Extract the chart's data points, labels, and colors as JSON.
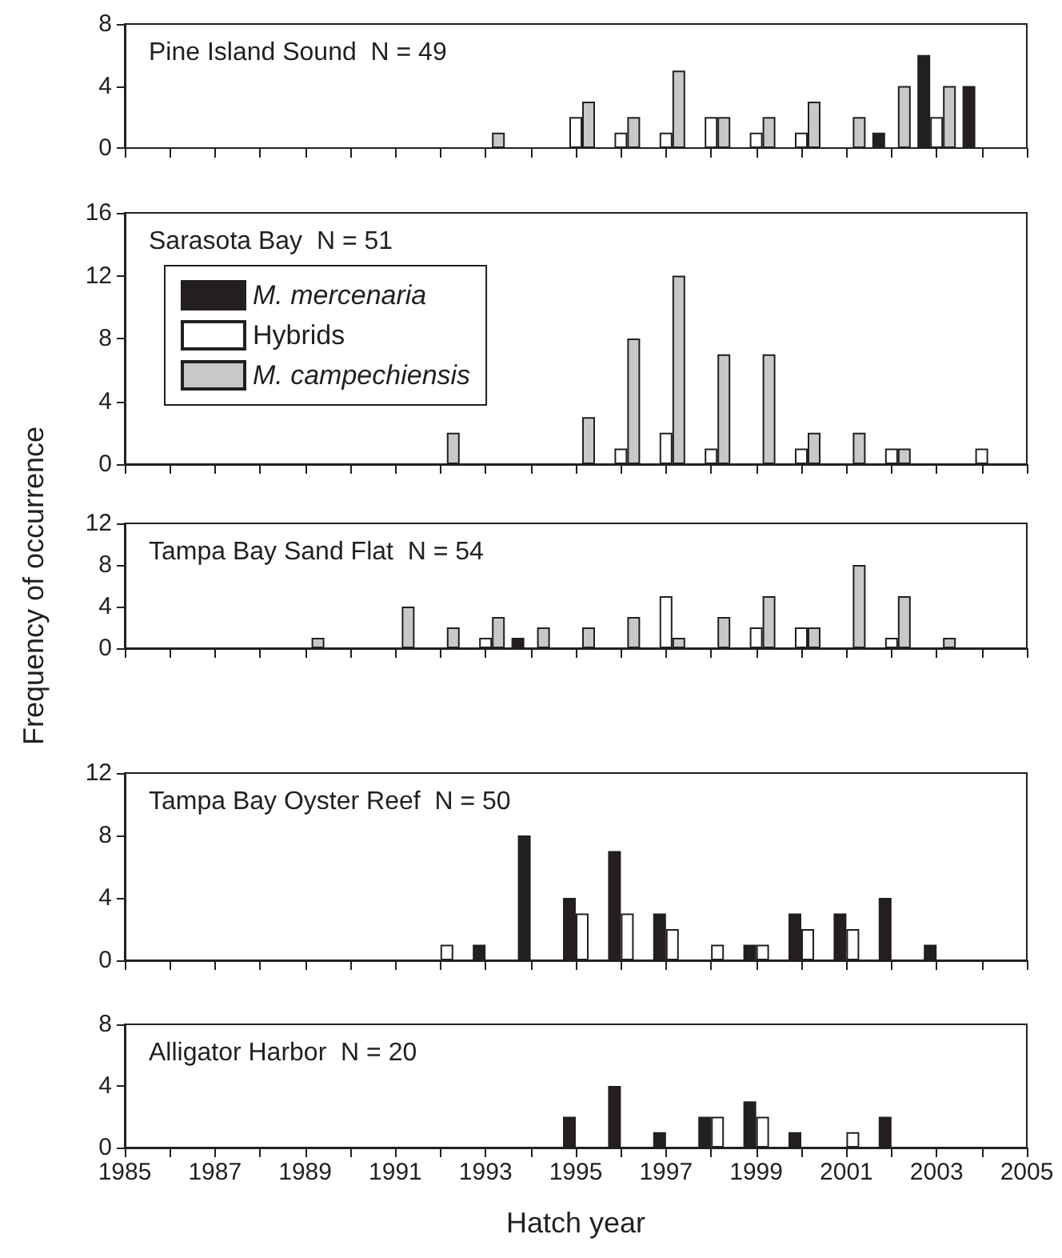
{
  "chart_data": [
    {
      "type": "bar",
      "title": "Pine Island Sound  N = 49",
      "xlim": [
        1985,
        2005
      ],
      "ylim": [
        0,
        8
      ],
      "yticks": [
        0,
        4,
        8
      ],
      "tick_labels": "y",
      "grid": false,
      "legend": false,
      "xticks": [
        {
          "value": 1985,
          "label": null
        },
        {
          "value": 1986,
          "label": null
        },
        {
          "value": 1987,
          "label": null
        },
        {
          "value": 1988,
          "label": null
        },
        {
          "value": 1989,
          "label": null
        },
        {
          "value": 1990,
          "label": null
        },
        {
          "value": 1991,
          "label": null
        },
        {
          "value": 1992,
          "label": null
        },
        {
          "value": 1993,
          "label": null
        },
        {
          "value": 1994,
          "label": null
        },
        {
          "value": 1995,
          "label": null
        },
        {
          "value": 1996,
          "label": null
        },
        {
          "value": 1997,
          "label": null
        },
        {
          "value": 1998,
          "label": null
        },
        {
          "value": 1999,
          "label": null
        },
        {
          "value": 2000,
          "label": null
        },
        {
          "value": 2001,
          "label": null
        },
        {
          "value": 2002,
          "label": null
        },
        {
          "value": 2003,
          "label": null
        },
        {
          "value": 2004,
          "label": null
        },
        {
          "value": 2005,
          "label": null
        }
      ],
      "x": [
        1993,
        1995,
        1996,
        1997,
        1998,
        1999,
        2000,
        2001,
        2002,
        2003,
        2004
      ],
      "series": [
        {
          "color": "#231f20",
          "values": [
            null,
            null,
            null,
            null,
            null,
            null,
            null,
            null,
            1,
            6,
            4
          ]
        },
        {
          "color": "#ffffff",
          "values": [
            null,
            2,
            1,
            1,
            2,
            1,
            1,
            null,
            null,
            2,
            null
          ]
        },
        {
          "color": "#c8c8c8",
          "values": [
            1,
            3,
            2,
            5,
            2,
            2,
            3,
            2,
            4,
            4,
            null
          ]
        }
      ]
    },
    {
      "type": "bar",
      "title": "Sarasota Bay  N = 51",
      "xlim": [
        1985,
        2005
      ],
      "ylim": [
        0,
        16
      ],
      "yticks": [
        0,
        4,
        8,
        12,
        16
      ],
      "tick_labels": "y",
      "grid": false,
      "legend": "top left",
      "xticks": [
        {
          "value": 1985,
          "label": null
        },
        {
          "value": 1986,
          "label": null
        },
        {
          "value": 1987,
          "label": null
        },
        {
          "value": 1988,
          "label": null
        },
        {
          "value": 1989,
          "label": null
        },
        {
          "value": 1990,
          "label": null
        },
        {
          "value": 1991,
          "label": null
        },
        {
          "value": 1992,
          "label": null
        },
        {
          "value": 1993,
          "label": null
        },
        {
          "value": 1994,
          "label": null
        },
        {
          "value": 1995,
          "label": null
        },
        {
          "value": 1996,
          "label": null
        },
        {
          "value": 1997,
          "label": null
        },
        {
          "value": 1998,
          "label": null
        },
        {
          "value": 1999,
          "label": null
        },
        {
          "value": 2000,
          "label": null
        },
        {
          "value": 2001,
          "label": null
        },
        {
          "value": 2002,
          "label": null
        },
        {
          "value": 2003,
          "label": null
        },
        {
          "value": 2004,
          "label": null
        },
        {
          "value": 2005,
          "label": null
        }
      ],
      "x": [
        1992,
        1995,
        1996,
        1997,
        1998,
        1999,
        2000,
        2001,
        2002,
        2004
      ],
      "series": [
        {
          "name": "M. mercenaria",
          "color": "#231f20",
          "values": [
            null,
            null,
            null,
            null,
            null,
            null,
            null,
            null,
            null,
            null
          ]
        },
        {
          "name": "Hybrids",
          "color": "#ffffff",
          "values": [
            null,
            null,
            1,
            2,
            1,
            null,
            1,
            null,
            1,
            1
          ]
        },
        {
          "name": "M. campechiensis",
          "color": "#c8c8c8",
          "values": [
            2,
            3,
            8,
            12,
            7,
            7,
            2,
            2,
            1,
            null
          ]
        }
      ]
    },
    {
      "type": "bar",
      "title": "Tampa Bay Sand Flat  N = 54",
      "ylabel": "Frequency of occurrence",
      "xlim": [
        1985,
        2005
      ],
      "ylim": [
        0,
        12
      ],
      "yticks": [
        0,
        4,
        8,
        12
      ],
      "tick_labels": "y",
      "grid": false,
      "legend": false,
      "xticks": [
        {
          "value": 1985,
          "label": null
        },
        {
          "value": 1986,
          "label": null
        },
        {
          "value": 1987,
          "label": null
        },
        {
          "value": 1988,
          "label": null
        },
        {
          "value": 1989,
          "label": null
        },
        {
          "value": 1990,
          "label": null
        },
        {
          "value": 1991,
          "label": null
        },
        {
          "value": 1992,
          "label": null
        },
        {
          "value": 1993,
          "label": null
        },
        {
          "value": 1994,
          "label": null
        },
        {
          "value": 1995,
          "label": null
        },
        {
          "value": 1996,
          "label": null
        },
        {
          "value": 1997,
          "label": null
        },
        {
          "value": 1998,
          "label": null
        },
        {
          "value": 1999,
          "label": null
        },
        {
          "value": 2000,
          "label": null
        },
        {
          "value": 2001,
          "label": null
        },
        {
          "value": 2002,
          "label": null
        },
        {
          "value": 2003,
          "label": null
        },
        {
          "value": 2004,
          "label": null
        },
        {
          "value": 2005,
          "label": null
        }
      ],
      "x": [
        1989,
        1991,
        1992,
        1993,
        1994,
        1995,
        1996,
        1997,
        1998,
        1999,
        2000,
        2001,
        2002,
        2003
      ],
      "series": [
        {
          "color": "#231f20",
          "values": [
            null,
            null,
            null,
            null,
            1,
            null,
            null,
            null,
            null,
            null,
            null,
            null,
            null,
            null
          ]
        },
        {
          "color": "#ffffff",
          "values": [
            null,
            null,
            null,
            1,
            null,
            null,
            null,
            5,
            null,
            2,
            2,
            null,
            1,
            null
          ]
        },
        {
          "color": "#c8c8c8",
          "values": [
            1,
            4,
            2,
            3,
            2,
            2,
            3,
            1,
            3,
            5,
            2,
            8,
            5,
            1
          ]
        }
      ]
    },
    {
      "type": "bar",
      "title": "Tampa Bay Oyster Reef  N = 50",
      "xlim": [
        1985,
        2005
      ],
      "ylim": [
        0,
        12
      ],
      "yticks": [
        0,
        4,
        8,
        12
      ],
      "tick_labels": "y",
      "grid": false,
      "legend": false,
      "xticks": [
        {
          "value": 1985,
          "label": null
        },
        {
          "value": 1986,
          "label": null
        },
        {
          "value": 1987,
          "label": null
        },
        {
          "value": 1988,
          "label": null
        },
        {
          "value": 1989,
          "label": null
        },
        {
          "value": 1990,
          "label": null
        },
        {
          "value": 1991,
          "label": null
        },
        {
          "value": 1992,
          "label": null
        },
        {
          "value": 1993,
          "label": null
        },
        {
          "value": 1994,
          "label": null
        },
        {
          "value": 1995,
          "label": null
        },
        {
          "value": 1996,
          "label": null
        },
        {
          "value": 1997,
          "label": null
        },
        {
          "value": 1998,
          "label": null
        },
        {
          "value": 1999,
          "label": null
        },
        {
          "value": 2000,
          "label": null
        },
        {
          "value": 2001,
          "label": null
        },
        {
          "value": 2002,
          "label": null
        },
        {
          "value": 2003,
          "label": null
        },
        {
          "value": 2004,
          "label": null
        },
        {
          "value": 2005,
          "label": null
        }
      ],
      "x": [
        1992,
        1993,
        1994,
        1995,
        1996,
        1997,
        1998,
        1999,
        2000,
        2001,
        2002,
        2003
      ],
      "series": [
        {
          "color": "#231f20",
          "values": [
            null,
            1,
            8,
            4,
            7,
            3,
            null,
            1,
            3,
            3,
            4,
            1
          ]
        },
        {
          "color": "#ffffff",
          "values": [
            1,
            null,
            null,
            3,
            3,
            2,
            1,
            1,
            2,
            2,
            null,
            null
          ]
        }
      ]
    },
    {
      "type": "bar",
      "title": "Alligator Harbor  N = 20",
      "xlabel": "Hatch year",
      "xlim": [
        1985,
        2005
      ],
      "ylim": [
        0,
        8
      ],
      "yticks": [
        0,
        4,
        8
      ],
      "grid": false,
      "legend": false,
      "xticks": [
        1985,
        {
          "value": 1986,
          "label": null
        },
        1987,
        {
          "value": 1988,
          "label": null
        },
        1989,
        {
          "value": 1990,
          "label": null
        },
        1991,
        {
          "value": 1992,
          "label": null
        },
        1993,
        {
          "value": 1994,
          "label": null
        },
        1995,
        {
          "value": 1996,
          "label": null
        },
        1997,
        {
          "value": 1998,
          "label": null
        },
        1999,
        {
          "value": 2000,
          "label": null
        },
        2001,
        {
          "value": 2002,
          "label": null
        },
        2003,
        {
          "value": 2004,
          "label": null
        },
        2005
      ],
      "x": [
        1995,
        1996,
        1997,
        1998,
        1999,
        2000,
        2001,
        2002
      ],
      "series": [
        {
          "color": "#231f20",
          "values": [
            2,
            4,
            1,
            2,
            3,
            1,
            null,
            2
          ]
        },
        {
          "color": "#ffffff",
          "values": [
            null,
            null,
            null,
            2,
            2,
            null,
            1,
            null
          ]
        }
      ]
    }
  ]
}
